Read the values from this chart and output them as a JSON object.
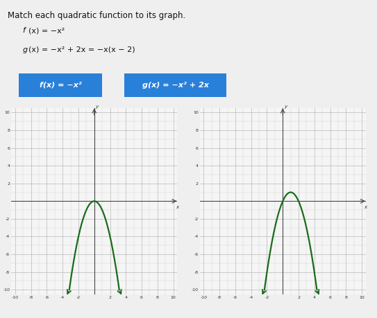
{
  "title": "Match each quadratic function to its graph.",
  "func1_label": "f(x) = -x²",
  "func2_label": "g(x) = -x² + 2x = -x(x - 2)",
  "btn1_text": "f(x) = -x²",
  "btn2_text": "g(x) = -x² + 2x",
  "btn_color": "#2980d9",
  "btn_text_color": "#ffffff",
  "graph_bg": "#f8f8f8",
  "graph_border_color": "#cccccc",
  "grid_major_color": "#c0c0c0",
  "grid_minor_color": "#d8d8d8",
  "axis_color": "#555555",
  "curve_color": "#1a6b1a",
  "curve_lw": 1.6,
  "xlim": [
    -10,
    10
  ],
  "ylim": [
    -10,
    10
  ],
  "page_bg": "#f0f0f0",
  "panel_bg": "#e0e0e0",
  "bottom_box_color": "#aaccee",
  "font_color": "#111111",
  "title_fontsize": 8.5,
  "func_fontsize": 8,
  "btn_fontsize": 8
}
